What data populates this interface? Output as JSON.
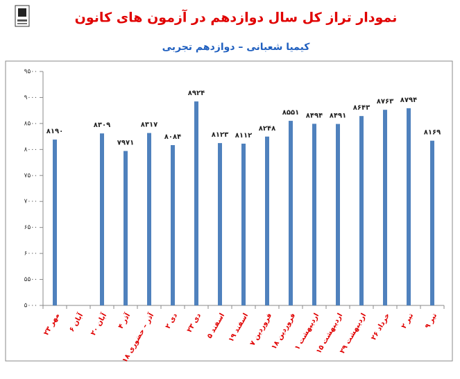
{
  "chart_data": {
    "type": "bar",
    "title": "نمودار تراز کل سال دوازدهم در آزمون های کانون",
    "subtitle": "کیمیا شعبانی – دوازدهم تجربی",
    "categories": [
      "۲۳ مهر",
      "۶ آبان",
      "۲۰ آبان",
      "۴ آذر",
      "۱۸ آذر – حضوری",
      "۲ دی",
      "۲۳ دی",
      "۵ اسفند",
      "۱۹ اسفند",
      "۷ فروردین",
      "۱۸ فروردین",
      "۱ اردیبهشت",
      "۱۵ اردیبهشت",
      "۲۹ اردیبهشت",
      "۲۶ خرداد",
      "۲ تیر",
      "۹ تیر"
    ],
    "values": [
      8190,
      null,
      8309,
      7971,
      8317,
      8084,
      8924,
      8123,
      8112,
      8248,
      8551,
      8494,
      8491,
      8643,
      8763,
      8794,
      8169
    ],
    "value_labels": [
      "۸۱۹۰",
      null,
      "۸۳۰۹",
      "۷۹۷۱",
      "۸۳۱۷",
      "۸۰۸۴",
      "۸۹۲۴",
      "۸۱۲۳",
      "۸۱۱۲",
      "۸۲۴۸",
      "۸۵۵۱",
      "۸۴۹۴",
      "۸۴۹۱",
      "۸۶۴۳",
      "۸۷۶۳",
      "۸۷۹۴",
      "۸۱۶۹"
    ],
    "color": "#4f81bd",
    "ylim": [
      5000,
      9500
    ],
    "yticks": [
      {
        "value": 5000,
        "label": "۵۰۰۰"
      },
      {
        "value": 5500,
        "label": "۵۵۰۰"
      },
      {
        "value": 6000,
        "label": "۶۰۰۰"
      },
      {
        "value": 6500,
        "label": "۶۵۰۰"
      },
      {
        "value": 7000,
        "label": "۷۰۰۰"
      },
      {
        "value": 7500,
        "label": "۷۵۰۰"
      },
      {
        "value": 8000,
        "label": "۸۰۰۰"
      },
      {
        "value": 8500,
        "label": "۸۵۰۰"
      },
      {
        "value": 9000,
        "label": "۹۰۰۰"
      },
      {
        "value": 9500,
        "label": "۹۵۰۰"
      }
    ],
    "grid": false
  }
}
